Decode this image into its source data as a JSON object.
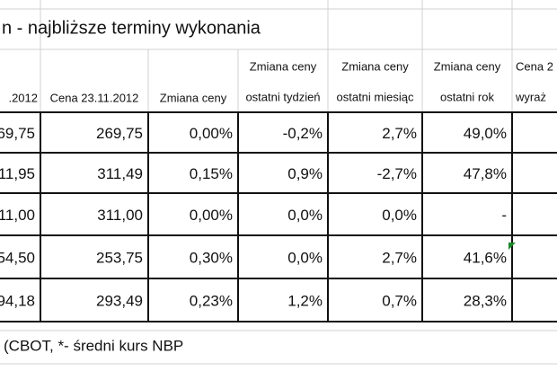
{
  "header": {
    "title": "n - najbliższe terminy wykonania"
  },
  "table": {
    "columns": [
      [
        ".2012"
      ],
      [
        "Cena 23.11.2012"
      ],
      [
        "Zmiana ceny"
      ],
      [
        "Zmiana ceny",
        "ostatni tydzień"
      ],
      [
        "Zmiana ceny",
        "ostatni miesiąc"
      ],
      [
        "Zmiana ceny",
        "ostatni rok"
      ],
      [
        "Cena 2",
        "wyraż"
      ]
    ],
    "rows": [
      [
        "69,75",
        "269,75",
        "0,00%",
        "-0,2%",
        "2,7%",
        "49,0%"
      ],
      [
        "11,95",
        "311,49",
        "0,15%",
        "0,9%",
        "-2,7%",
        "47,8%"
      ],
      [
        "11,00",
        "311,00",
        "0,00%",
        "0,0%",
        "0,0%",
        "-"
      ],
      [
        "54,50",
        "253,75",
        "0,30%",
        "0,0%",
        "2,7%",
        "41,6%"
      ],
      [
        "94,18",
        "293,49",
        "0,23%",
        "1,2%",
        "0,7%",
        "28,3%"
      ]
    ]
  },
  "footer": {
    "note": "(CBOT, *- średni kurs NBP"
  }
}
